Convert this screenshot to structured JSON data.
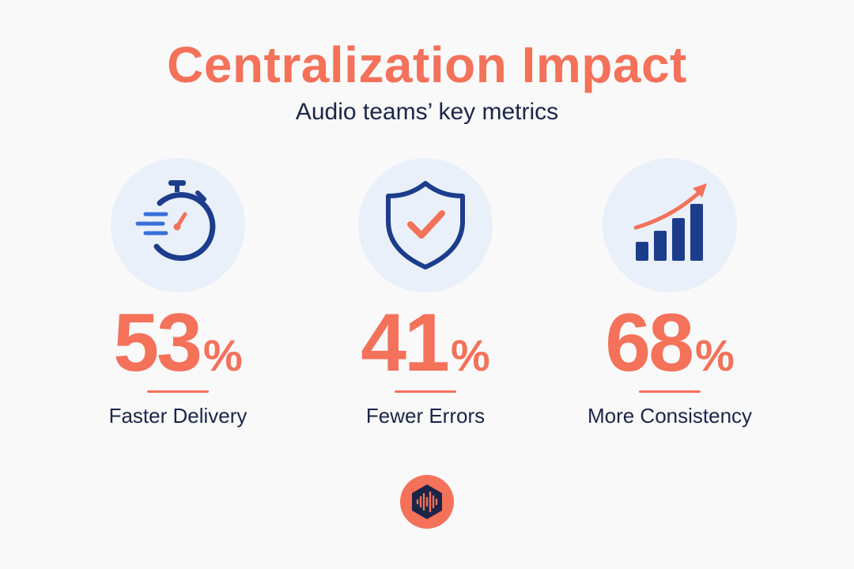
{
  "header": {
    "title": "Centralization Impact",
    "subtitle": "Audio teams’ key metrics"
  },
  "metrics": [
    {
      "value": "53",
      "unit": "%",
      "label": "Faster Delivery",
      "icon": "stopwatch-icon"
    },
    {
      "value": "41",
      "unit": "%",
      "label": "Fewer Errors",
      "icon": "shield-check-icon"
    },
    {
      "value": "68",
      "unit": "%",
      "label": "More Consistency",
      "icon": "growth-chart-icon"
    }
  ],
  "footer": {
    "logo": "audio-wave-logo-icon"
  },
  "colors": {
    "accent": "#f4715a",
    "navy": "#1c3d8c",
    "text": "#1c2547",
    "icon_bg": "#eaf0f9",
    "background": "#f9f9fa"
  }
}
